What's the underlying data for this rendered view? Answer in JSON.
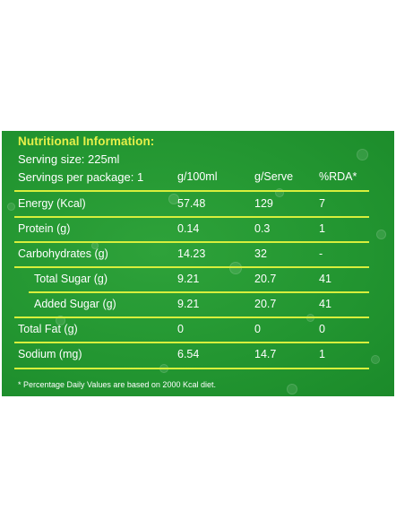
{
  "label": {
    "title": "Nutritional Information:",
    "serving_size": "Serving size: 225ml",
    "servings_per_package": "Servings per package: 1",
    "columns": {
      "per_100ml": "g/100ml",
      "per_serve": "g/Serve",
      "rda": "%RDA*"
    },
    "rows": [
      {
        "name": "Energy (Kcal)",
        "per_100ml": "57.48",
        "per_serve": "129",
        "rda": "7"
      },
      {
        "name": "Protein (g)",
        "per_100ml": "0.14",
        "per_serve": "0.3",
        "rda": "1"
      },
      {
        "name": "Carbohydrates (g)",
        "per_100ml": "14.23",
        "per_serve": "32",
        "rda": "-"
      },
      {
        "name": "Total Sugar (g)",
        "per_100ml": "9.21",
        "per_serve": "20.7",
        "rda": "41"
      },
      {
        "name": "Added Sugar (g)",
        "per_100ml": "9.21",
        "per_serve": "20.7",
        "rda": "41"
      },
      {
        "name": "Total Fat (g)",
        "per_100ml": "0",
        "per_serve": "0",
        "rda": "0"
      },
      {
        "name": "Sodium (mg)",
        "per_100ml": "6.54",
        "per_serve": "14.7",
        "rda": "1"
      }
    ],
    "footnote": "* Percentage Daily Values are based on 2000 Kcal diet."
  },
  "colors": {
    "background": "#239631",
    "title": "#e6f04a",
    "rule": "#d8ef3c",
    "text": "#ffffff"
  }
}
